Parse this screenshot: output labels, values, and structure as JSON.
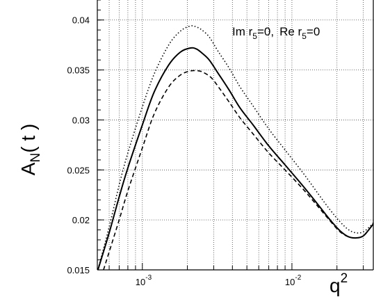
{
  "chart_data": {
    "type": "line",
    "xscale": "log",
    "xlim": [
      0.0005,
      0.035
    ],
    "ylim": [
      0.015,
      0.042
    ],
    "grid": true,
    "ylabel": {
      "main": "A",
      "sub": "N",
      "rest": "( t )"
    },
    "xlabel": {
      "main": "q",
      "sup": "2"
    },
    "annotation": {
      "im": "Im r",
      "im_sub": "5",
      "im_val": "=0,",
      "re": "Re r",
      "re_sub": "5",
      "re_val": "=0"
    },
    "y_ticks": [
      {
        "value": 0.015,
        "label": "0.015"
      },
      {
        "value": 0.02,
        "label": "0.02"
      },
      {
        "value": 0.025,
        "label": "0.025"
      },
      {
        "value": 0.03,
        "label": "0.03"
      },
      {
        "value": 0.035,
        "label": "0.035"
      },
      {
        "value": 0.04,
        "label": "0.04"
      }
    ],
    "x_ticks": [
      {
        "value": 0.001,
        "base": "10",
        "exp": "-3"
      },
      {
        "value": 0.01,
        "base": "10",
        "exp": "-2"
      }
    ],
    "series": [
      {
        "style": "dotted",
        "x": [
          0.0005,
          0.0006,
          0.0007,
          0.0008,
          0.001,
          0.0012,
          0.0015,
          0.0018,
          0.0021,
          0.0023,
          0.0025,
          0.0028,
          0.0032,
          0.0038,
          0.0045,
          0.0055,
          0.007,
          0.009,
          0.012,
          0.015,
          0.018,
          0.021,
          0.024,
          0.027,
          0.03,
          0.033,
          0.035
        ],
        "y": [
          0.0148,
          0.0193,
          0.0235,
          0.0267,
          0.0313,
          0.0346,
          0.0375,
          0.0389,
          0.0394,
          0.0393,
          0.039,
          0.0383,
          0.0369,
          0.0352,
          0.0333,
          0.0314,
          0.0291,
          0.027,
          0.0246,
          0.0226,
          0.021,
          0.0198,
          0.019,
          0.0187,
          0.0188,
          0.0193,
          0.0197
        ]
      },
      {
        "style": "solid",
        "x": [
          0.0005,
          0.0006,
          0.0007,
          0.0008,
          0.001,
          0.0012,
          0.0015,
          0.0018,
          0.0021,
          0.0023,
          0.0025,
          0.0028,
          0.0032,
          0.0038,
          0.0045,
          0.0055,
          0.007,
          0.009,
          0.012,
          0.015,
          0.018,
          0.021,
          0.024,
          0.027,
          0.03,
          0.033,
          0.035
        ],
        "y": [
          0.0148,
          0.0187,
          0.0223,
          0.0252,
          0.0295,
          0.0328,
          0.0355,
          0.0368,
          0.0372,
          0.0371,
          0.0367,
          0.036,
          0.0347,
          0.033,
          0.0312,
          0.0295,
          0.0274,
          0.0255,
          0.0233,
          0.0215,
          0.02,
          0.0189,
          0.0183,
          0.0182,
          0.0184,
          0.0191,
          0.0196
        ]
      },
      {
        "style": "dashed",
        "x": [
          0.00055,
          0.0006,
          0.0007,
          0.0008,
          0.001,
          0.0012,
          0.0015,
          0.0018,
          0.0021,
          0.0024,
          0.0026,
          0.0029,
          0.0033,
          0.0038,
          0.0045,
          0.0055,
          0.007,
          0.009,
          0.012,
          0.015,
          0.018,
          0.021,
          0.024,
          0.027,
          0.03,
          0.033,
          0.035
        ],
        "y": [
          0.015,
          0.0168,
          0.02,
          0.0229,
          0.0272,
          0.0306,
          0.0333,
          0.0345,
          0.0349,
          0.0349,
          0.0347,
          0.0342,
          0.0331,
          0.0318,
          0.0302,
          0.0286,
          0.0267,
          0.025,
          0.023,
          0.0213,
          0.0199,
          0.0188,
          0.0183,
          0.0182,
          0.0184,
          0.0191,
          0.0196
        ]
      }
    ]
  }
}
